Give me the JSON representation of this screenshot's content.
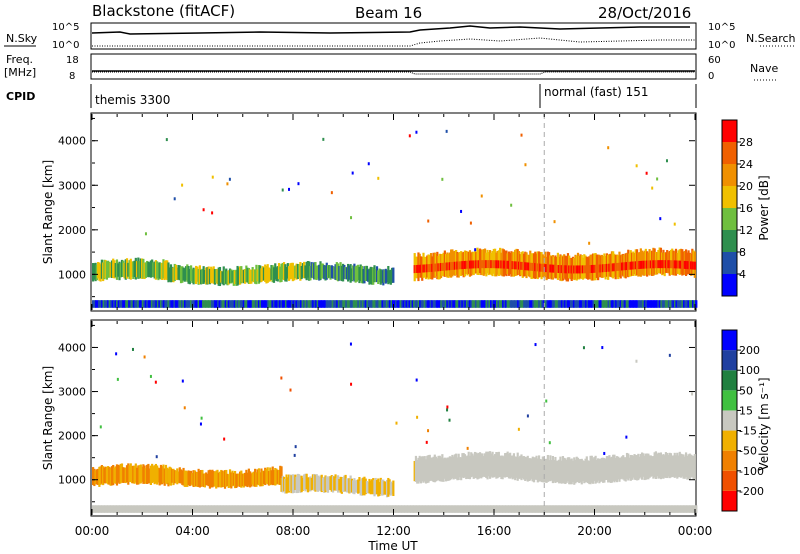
{
  "header": {
    "title": "Blackstone (fitACF)",
    "beam": "Beam 16",
    "date": "28/Oct/2016"
  },
  "top_panels": {
    "nsky_label": "N.Sky",
    "nsky_top": "10^5",
    "nsky_bot": "10^0",
    "nsearch_label": "N.Search",
    "nsearch_top": "10^5",
    "nsearch_bot": "10^0",
    "freq_label_1": "Freq.",
    "freq_label_2": "[MHz]",
    "freq_top": "18",
    "freq_bot": "8",
    "nave_label": "Nave",
    "nave_top": "60",
    "nave_bot": "0",
    "cpid_label": "CPID",
    "cpid_mode_1": "themis 3300",
    "cpid_mode_2": "normal (fast) 151"
  },
  "colors": {
    "power": [
      "#0000ff",
      "#1f4fa8",
      "#2f8f4f",
      "#6fbf3f",
      "#f0c000",
      "#f09000",
      "#f06000",
      "#ff0000"
    ],
    "velocity": [
      "#ff0000",
      "#f05000",
      "#f08000",
      "#f0b000",
      "#c8c8c0",
      "#40c040",
      "#208040",
      "#2040a0",
      "#0000ff"
    ],
    "gray_scatter": "#c8c8c0"
  },
  "power_scale": {
    "title": "Power [dB]",
    "ticks": [
      "4",
      "8",
      "12",
      "16",
      "20",
      "24",
      "28"
    ]
  },
  "velocity_scale": {
    "title": "Velocity [m s⁻¹]",
    "ticks": [
      "-200",
      "-100",
      "-50",
      "-15",
      "15",
      "50",
      "100",
      "200"
    ]
  },
  "chart_data": [
    {
      "type": "heatmap",
      "title": "",
      "xlabel": "",
      "ylabel": "Slant Range [km]",
      "xlim": [
        0,
        24
      ],
      "ylim": [
        200,
        4600
      ],
      "yticks": [
        "1000",
        "2000",
        "3000",
        "4000"
      ],
      "mode_change_time": 18,
      "bands": [
        {
          "start": 0,
          "end": 3,
          "center": 1050,
          "width": 300,
          "level": 4
        },
        {
          "start": 3,
          "end": 8.5,
          "center": 1000,
          "width": 250,
          "level": 4
        },
        {
          "start": 8.5,
          "end": 12,
          "center": 1000,
          "width": 250,
          "level": 3
        },
        {
          "start": 12.8,
          "end": 24,
          "center": 1200,
          "width": 450,
          "level": 6
        }
      ]
    },
    {
      "type": "heatmap",
      "title": "",
      "xlabel": "Time UT",
      "ylabel": "Slant Range [km]",
      "xlim": [
        0,
        24
      ],
      "ylim": [
        200,
        4600
      ],
      "xticks": [
        "00:00",
        "04:00",
        "08:00",
        "12:00",
        "16:00",
        "20:00",
        "00:00"
      ],
      "yticks": [
        "1000",
        "2000",
        "3000",
        "4000"
      ],
      "mode_change_time": 18,
      "bands": [
        {
          "start": 0,
          "end": 3,
          "center": 1050,
          "width": 300,
          "level": 3
        },
        {
          "start": 3,
          "end": 7.5,
          "center": 1050,
          "width": 250,
          "level": 3
        },
        {
          "start": 7.5,
          "end": 12,
          "center": 850,
          "width": 250,
          "level": 4
        },
        {
          "start": 12.8,
          "end": 24,
          "center": 1250,
          "width": 450,
          "level": 4
        }
      ]
    }
  ]
}
